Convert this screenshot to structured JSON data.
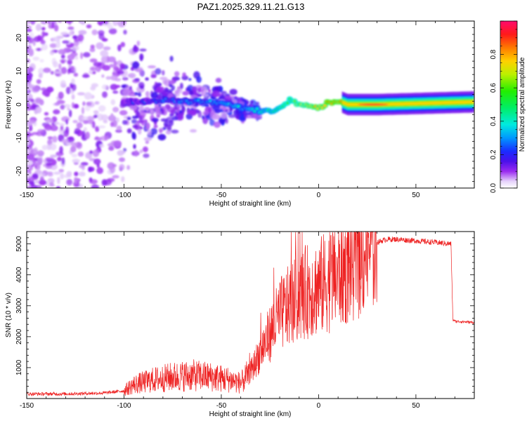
{
  "title": "PAZ1.2025.329.11.21.G13",
  "chart_data": [
    {
      "type": "heatmap",
      "title": "PAZ1.2025.329.11.21.G13",
      "xlabel": "Height of straight line (km)",
      "ylabel": "Frequency (Hz)",
      "xlim": [
        -150,
        80
      ],
      "ylim": [
        -25,
        25
      ],
      "xticks": [
        -150,
        -100,
        -50,
        0,
        50
      ],
      "yticks": [
        -20,
        -10,
        0,
        10,
        20
      ],
      "colorbar": {
        "label": "Normalized spectral amplitude",
        "range": [
          0,
          1
        ],
        "ticks": [
          0.0,
          0.2,
          0.4,
          0.6,
          0.8
        ]
      },
      "ridge": [
        {
          "h": -100,
          "f": 1.0
        },
        {
          "h": -75,
          "f": 1.2
        },
        {
          "h": -50,
          "f": 0.5
        },
        {
          "h": -40,
          "f": -1.0
        },
        {
          "h": -30,
          "f": -2.0
        },
        {
          "h": -20,
          "f": -1.5
        },
        {
          "h": -15,
          "f": 1.5
        },
        {
          "h": -10,
          "f": 0.5
        },
        {
          "h": 0,
          "f": -1.0
        },
        {
          "h": 5,
          "f": 0.5
        },
        {
          "h": 10,
          "f": 1.2
        },
        {
          "h": 15,
          "f": 0.0
        },
        {
          "h": 30,
          "f": 0.0
        },
        {
          "h": 50,
          "f": 0.3
        },
        {
          "h": 80,
          "f": 0.8
        }
      ]
    },
    {
      "type": "line",
      "xlabel": "Height of straight line (km)",
      "ylabel": "SNR (10 * v/v)",
      "xlim": [
        -150,
        80
      ],
      "ylim": [
        0,
        5400
      ],
      "xticks": [
        -150,
        -100,
        -50,
        0,
        50
      ],
      "yticks": [
        1000,
        2000,
        3000,
        4000,
        5000
      ],
      "color": "#ee2222",
      "series": [
        {
          "name": "SNR",
          "x": [
            -150,
            -130,
            -110,
            -100,
            -95,
            -85,
            -75,
            -65,
            -55,
            -45,
            -40,
            -35,
            -30,
            -25,
            -20,
            -15,
            -10,
            -5,
            0,
            5,
            10,
            15,
            20,
            25,
            30,
            35,
            40,
            50,
            60,
            68,
            69,
            70,
            75,
            80
          ],
          "y": [
            150,
            150,
            180,
            250,
            450,
            600,
            700,
            750,
            700,
            600,
            500,
            850,
            1500,
            2100,
            2700,
            3000,
            3300,
            3500,
            3600,
            3800,
            4000,
            4300,
            4600,
            4900,
            5050,
            5150,
            5150,
            5100,
            5050,
            5000,
            2550,
            2500,
            2480,
            2460
          ]
        }
      ]
    }
  ]
}
